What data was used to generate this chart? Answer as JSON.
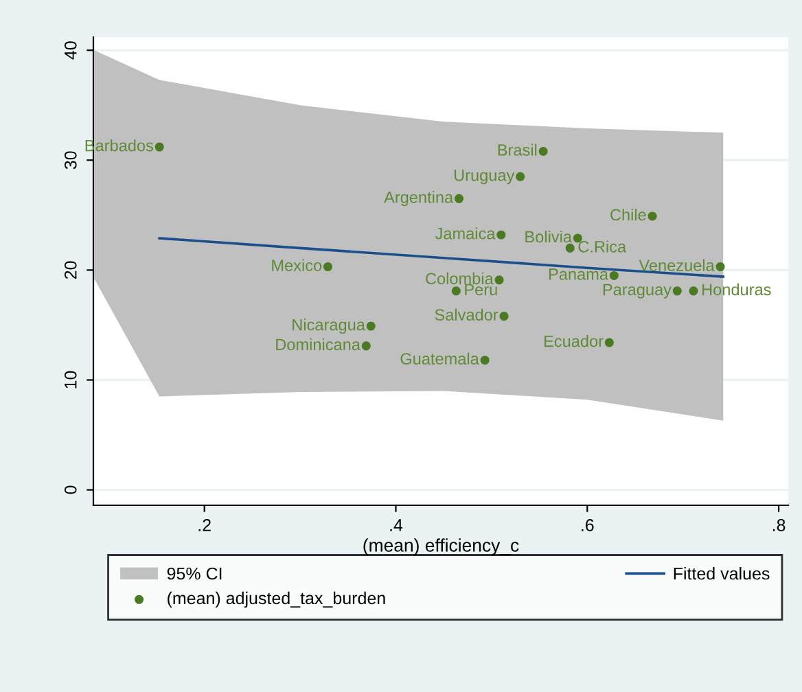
{
  "chart_data": {
    "type": "scatter",
    "xlabel": "(mean) efficiency_c",
    "xlim": [
      0.084,
      0.81
    ],
    "ylim": [
      -1.4,
      41.2
    ],
    "xticks": [
      {
        "value": 0.2,
        "label": ".2"
      },
      {
        "value": 0.4,
        "label": ".4"
      },
      {
        "value": 0.6,
        "label": ".6"
      },
      {
        "value": 0.8,
        "label": ".8"
      }
    ],
    "yticks": [
      0,
      10,
      20,
      30,
      40
    ],
    "grid": "y",
    "legend": "bottom",
    "series": [
      {
        "name": "Fitted values",
        "type": "line",
        "color": "#1a4f8b",
        "x": [
          0.085,
          0.153,
          0.3,
          0.45,
          0.6,
          0.742
        ],
        "values": [
          null,
          22.9,
          22.0,
          21.1,
          20.2,
          19.4
        ],
        "lower": [
          19.2,
          8.5,
          8.9,
          9.0,
          8.2,
          6.3
        ],
        "upper": [
          40.0,
          37.3,
          35.0,
          33.5,
          32.9,
          32.5
        ]
      },
      {
        "name": "(mean) adjusted_tax_burden",
        "color": "#4a7a22",
        "marker": "circle",
        "x": [
          0.153,
          0.329,
          0.374,
          0.369,
          0.554,
          0.53,
          0.466,
          0.668,
          0.51,
          0.59,
          0.582,
          0.739,
          0.628,
          0.508,
          0.463,
          0.694,
          0.711,
          0.513,
          0.623,
          0.493
        ],
        "values": [
          31.2,
          20.3,
          14.9,
          13.1,
          30.8,
          28.5,
          26.5,
          24.9,
          23.2,
          22.9,
          22.0,
          20.3,
          19.5,
          19.1,
          18.1,
          18.1,
          18.1,
          15.8,
          13.4,
          11.8
        ]
      }
    ],
    "annotations": [
      "95% CI",
      {
        "text": "Barbados",
        "x": 0.153,
        "y": 31.2
      },
      {
        "text": "Mexico",
        "x": 0.329,
        "y": 20.3
      },
      {
        "text": "Nicaragua",
        "x": 0.374,
        "y": 14.9
      },
      {
        "text": "Dominicana",
        "x": 0.369,
        "y": 13.1
      },
      {
        "text": "Brasil",
        "x": 0.554,
        "y": 30.8
      },
      {
        "text": "Uruguay",
        "x": 0.53,
        "y": 28.5
      },
      {
        "text": "Argentina",
        "x": 0.466,
        "y": 26.5
      },
      {
        "text": "Chile",
        "x": 0.668,
        "y": 24.9
      },
      {
        "text": "Jamaica",
        "x": 0.51,
        "y": 23.2
      },
      {
        "text": "Bolivia",
        "x": 0.59,
        "y": 22.9
      },
      {
        "text": "C.Rica",
        "x": 0.582,
        "y": 22.0
      },
      {
        "text": "Venezuela",
        "x": 0.739,
        "y": 20.3
      },
      {
        "text": "Panama",
        "x": 0.628,
        "y": 19.5
      },
      {
        "text": "Colombia",
        "x": 0.508,
        "y": 19.1
      },
      {
        "text": "Peru",
        "x": 0.463,
        "y": 18.1
      },
      {
        "text": "Paraguay",
        "x": 0.694,
        "y": 18.1
      },
      {
        "text": "Honduras",
        "x": 0.711,
        "y": 18.1
      },
      {
        "text": "Salvador",
        "x": 0.513,
        "y": 15.8
      },
      {
        "text": "Ecuador",
        "x": 0.623,
        "y": 13.4
      },
      {
        "text": "Guatemala",
        "x": 0.493,
        "y": 11.8
      }
    ]
  }
}
